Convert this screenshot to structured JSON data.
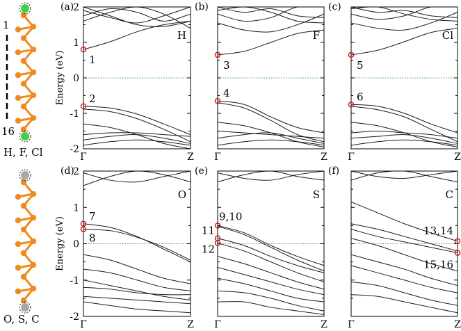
{
  "chart_data": [
    {
      "type": "line",
      "panel_label": "(a)",
      "element": "H",
      "ylabel": "Energy (eV)",
      "ylim": [
        -2,
        2
      ],
      "yticks": [
        "-2",
        "-1",
        "0",
        "1",
        "2"
      ],
      "xticks": [
        "Γ",
        "Z"
      ],
      "fermi_level": 0,
      "markers": [
        {
          "label": "1",
          "k": 0,
          "energy": 0.8
        },
        {
          "label": "2",
          "k": 0,
          "energy": -0.8
        }
      ],
      "bands": [
        {
          "x": [
            0,
            0.25,
            0.5,
            0.75,
            1
          ],
          "y": [
            0.8,
            1.02,
            1.3,
            1.5,
            1.6
          ]
        },
        {
          "x": [
            0,
            0.25,
            0.5,
            0.75,
            1
          ],
          "y": [
            -0.8,
            -0.85,
            -1.02,
            -1.3,
            -1.6
          ]
        },
        {
          "x": [
            0,
            0.25,
            0.5,
            0.75,
            1
          ],
          "y": [
            -0.88,
            -0.95,
            -1.15,
            -1.45,
            -1.8
          ]
        },
        {
          "x": [
            0,
            0.25,
            0.5,
            0.75,
            1
          ],
          "y": [
            -1.3,
            -1.4,
            -1.6,
            -1.85,
            -2.0
          ]
        },
        {
          "x": [
            0,
            0.25,
            0.5,
            0.75,
            1
          ],
          "y": [
            -1.6,
            -1.55,
            -1.55,
            -1.6,
            -1.65
          ]
        },
        {
          "x": [
            0,
            0.25,
            0.5,
            0.75,
            1
          ],
          "y": [
            -1.75,
            -1.65,
            -1.6,
            -1.7,
            -1.85
          ]
        },
        {
          "x": [
            0,
            0.25,
            0.5,
            0.75,
            1
          ],
          "y": [
            -1.9,
            -1.8,
            -1.75,
            -1.8,
            -1.9
          ]
        },
        {
          "x": [
            0,
            0.25,
            0.5,
            0.75,
            1
          ],
          "y": [
            1.9,
            1.7,
            1.55,
            1.75,
            2.0
          ]
        },
        {
          "x": [
            0,
            0.25,
            0.5,
            0.75,
            1
          ],
          "y": [
            1.6,
            1.85,
            2.0,
            1.8,
            1.4
          ]
        },
        {
          "x": [
            0,
            0.25,
            0.5,
            0.75,
            1
          ],
          "y": [
            2.0,
            1.75,
            1.5,
            1.45,
            1.6
          ]
        },
        {
          "x": [
            0,
            0.25,
            0.5,
            0.75,
            1
          ],
          "y": [
            1.75,
            1.95,
            1.85,
            1.6,
            1.8
          ]
        }
      ]
    },
    {
      "type": "line",
      "panel_label": "(b)",
      "element": "F",
      "ylim": [
        -2,
        2
      ],
      "xticks": [
        "Γ",
        "Z"
      ],
      "fermi_level": 0,
      "markers": [
        {
          "label": "3",
          "k": 0,
          "energy": 0.65
        },
        {
          "label": "4",
          "k": 0,
          "energy": -0.65
        }
      ],
      "bands": [
        {
          "x": [
            0,
            0.25,
            0.5,
            0.75,
            1
          ],
          "y": [
            0.65,
            0.75,
            1.0,
            1.25,
            1.35
          ]
        },
        {
          "x": [
            0,
            0.25,
            0.5,
            0.75,
            1
          ],
          "y": [
            -0.65,
            -0.75,
            -1.1,
            -1.4,
            -1.55
          ]
        },
        {
          "x": [
            0,
            0.25,
            0.5,
            0.75,
            1
          ],
          "y": [
            -0.7,
            -0.85,
            -1.2,
            -1.6,
            -1.8
          ]
        },
        {
          "x": [
            0,
            0.25,
            0.5,
            0.75,
            1
          ],
          "y": [
            -1.25,
            -1.35,
            -1.55,
            -1.8,
            -1.95
          ]
        },
        {
          "x": [
            0,
            0.25,
            0.5,
            0.75,
            1
          ],
          "y": [
            -1.5,
            -1.55,
            -1.6,
            -1.65,
            -1.7
          ]
        },
        {
          "x": [
            0,
            0.25,
            0.5,
            0.75,
            1
          ],
          "y": [
            -1.7,
            -1.6,
            -1.55,
            -1.7,
            -1.85
          ]
        },
        {
          "x": [
            0,
            0.25,
            0.5,
            0.75,
            1
          ],
          "y": [
            -1.9,
            -1.8,
            -1.75,
            -1.8,
            -1.9
          ]
        },
        {
          "x": [
            0,
            0.25,
            0.5,
            0.75,
            1
          ],
          "y": [
            1.55,
            1.35,
            1.3,
            1.5,
            1.8
          ]
        },
        {
          "x": [
            0,
            0.25,
            0.5,
            0.75,
            1
          ],
          "y": [
            1.8,
            1.6,
            1.7,
            2.0,
            2.0
          ]
        },
        {
          "x": [
            0,
            0.25,
            0.5,
            0.75,
            1
          ],
          "y": [
            1.9,
            2.0,
            1.85,
            1.6,
            1.55
          ]
        },
        {
          "x": [
            0,
            0.25,
            0.5,
            0.75,
            1
          ],
          "y": [
            2.0,
            1.85,
            1.95,
            1.75,
            1.7
          ]
        }
      ]
    },
    {
      "type": "line",
      "panel_label": "(c)",
      "element": "Cl",
      "ylim": [
        -2,
        2
      ],
      "xticks": [
        "Γ",
        "Z"
      ],
      "fermi_level": 0,
      "markers": [
        {
          "label": "5",
          "k": 0,
          "energy": 0.65
        },
        {
          "label": "6",
          "k": 0,
          "energy": -0.75
        }
      ],
      "bands": [
        {
          "x": [
            0,
            0.25,
            0.5,
            0.75,
            1
          ],
          "y": [
            0.65,
            0.78,
            1.02,
            1.28,
            1.4
          ]
        },
        {
          "x": [
            0,
            0.25,
            0.5,
            0.75,
            1
          ],
          "y": [
            -0.75,
            -0.8,
            -1.0,
            -1.3,
            -1.55
          ]
        },
        {
          "x": [
            0,
            0.25,
            0.5,
            0.75,
            1
          ],
          "y": [
            -0.8,
            -0.9,
            -1.1,
            -1.45,
            -1.8
          ]
        },
        {
          "x": [
            0,
            0.25,
            0.5,
            0.75,
            1
          ],
          "y": [
            -1.25,
            -1.35,
            -1.55,
            -1.8,
            -1.95
          ]
        },
        {
          "x": [
            0,
            0.25,
            0.5,
            0.75,
            1
          ],
          "y": [
            -1.55,
            -1.5,
            -1.55,
            -1.6,
            -1.7
          ]
        },
        {
          "x": [
            0,
            0.25,
            0.5,
            0.75,
            1
          ],
          "y": [
            -1.7,
            -1.65,
            -1.6,
            -1.7,
            -1.85
          ]
        },
        {
          "x": [
            0,
            0.25,
            0.5,
            0.75,
            1
          ],
          "y": [
            -1.9,
            -1.8,
            -1.75,
            -1.8,
            -1.9
          ]
        },
        {
          "x": [
            0,
            0.25,
            0.5,
            0.75,
            1
          ],
          "y": [
            1.55,
            1.4,
            1.35,
            1.55,
            1.85
          ]
        },
        {
          "x": [
            0,
            0.25,
            0.5,
            0.75,
            1
          ],
          "y": [
            1.8,
            1.65,
            1.75,
            2.0,
            2.0
          ]
        },
        {
          "x": [
            0,
            0.25,
            0.5,
            0.75,
            1
          ],
          "y": [
            1.95,
            2.0,
            1.8,
            1.65,
            1.6
          ]
        },
        {
          "x": [
            0,
            0.25,
            0.5,
            0.75,
            1
          ],
          "y": [
            2.0,
            1.85,
            1.9,
            1.75,
            1.7
          ]
        }
      ]
    },
    {
      "type": "line",
      "panel_label": "(d)",
      "element": "O",
      "ylabel": "Energy (eV)",
      "ylim": [
        -2,
        2
      ],
      "yticks": [
        "-2",
        "-1",
        "0",
        "1",
        "2"
      ],
      "xticks": [
        "Γ",
        "Z"
      ],
      "fermi_level": 0,
      "markers": [
        {
          "label": "7",
          "k": 0,
          "energy": 0.55
        },
        {
          "label": "8",
          "k": 0,
          "energy": 0.4
        }
      ],
      "bands": [
        {
          "x": [
            0,
            0.25,
            0.5,
            0.75,
            1
          ],
          "y": [
            0.55,
            0.45,
            0.2,
            -0.15,
            -0.5
          ]
        },
        {
          "x": [
            0,
            0.25,
            0.5,
            0.75,
            1
          ],
          "y": [
            0.4,
            0.36,
            0.18,
            -0.1,
            -0.45
          ]
        },
        {
          "x": [
            0,
            0.25,
            0.5,
            0.75,
            1
          ],
          "y": [
            -0.3,
            -0.45,
            -0.7,
            -0.95,
            -1.1
          ]
        },
        {
          "x": [
            0,
            0.25,
            0.5,
            0.75,
            1
          ],
          "y": [
            -0.7,
            -0.8,
            -1.0,
            -1.2,
            -1.3
          ]
        },
        {
          "x": [
            0,
            0.25,
            0.5,
            0.75,
            1
          ],
          "y": [
            -1.0,
            -1.15,
            -1.3,
            -1.45,
            -1.55
          ]
        },
        {
          "x": [
            0,
            0.25,
            0.5,
            0.75,
            1
          ],
          "y": [
            -1.2,
            -1.25,
            -1.35,
            -1.4,
            -1.4
          ]
        },
        {
          "x": [
            0,
            0.25,
            0.5,
            0.75,
            1
          ],
          "y": [
            -1.45,
            -1.5,
            -1.55,
            -1.6,
            -1.65
          ]
        },
        {
          "x": [
            0,
            0.25,
            0.5,
            0.75,
            1
          ],
          "y": [
            -1.6,
            -1.7,
            -1.8,
            -1.85,
            -1.9
          ]
        },
        {
          "x": [
            0,
            0.25,
            0.5,
            0.75,
            1
          ],
          "y": [
            1.6,
            1.85,
            2.0,
            1.9,
            1.7
          ]
        },
        {
          "x": [
            0,
            0.25,
            0.5,
            0.75,
            1
          ],
          "y": [
            1.95,
            1.75,
            1.7,
            1.85,
            2.0
          ]
        }
      ]
    },
    {
      "type": "line",
      "panel_label": "(e)",
      "element": "S",
      "ylim": [
        -2,
        2
      ],
      "xticks": [
        "Γ",
        "Z"
      ],
      "fermi_level": 0,
      "markers": [
        {
          "label": "9,10",
          "k": 0,
          "energy": 0.5
        },
        {
          "label": "11",
          "k": 0,
          "energy": 0.15
        },
        {
          "label": "12",
          "k": 0,
          "energy": 0.02
        }
      ],
      "bands": [
        {
          "x": [
            0,
            0.25,
            0.5,
            0.75,
            1
          ],
          "y": [
            0.5,
            0.3,
            -0.05,
            -0.35,
            -0.6
          ]
        },
        {
          "x": [
            0,
            0.25,
            0.5,
            0.75,
            1
          ],
          "y": [
            0.48,
            0.25,
            -0.1,
            -0.45,
            -0.75
          ]
        },
        {
          "x": [
            0,
            0.25,
            0.5,
            0.75,
            1
          ],
          "y": [
            0.15,
            -0.05,
            -0.35,
            -0.6,
            -0.8
          ]
        },
        {
          "x": [
            0,
            0.25,
            0.5,
            0.75,
            1
          ],
          "y": [
            0.02,
            -0.2,
            -0.5,
            -0.8,
            -1.05
          ]
        },
        {
          "x": [
            0,
            0.25,
            0.5,
            0.75,
            1
          ],
          "y": [
            -0.35,
            -0.55,
            -0.8,
            -1.05,
            -1.25
          ]
        },
        {
          "x": [
            0,
            0.25,
            0.5,
            0.75,
            1
          ],
          "y": [
            -0.65,
            -0.85,
            -1.05,
            -1.25,
            -1.4
          ]
        },
        {
          "x": [
            0,
            0.25,
            0.5,
            0.75,
            1
          ],
          "y": [
            -0.95,
            -1.1,
            -1.3,
            -1.5,
            -1.6
          ]
        },
        {
          "x": [
            0,
            0.25,
            0.5,
            0.75,
            1
          ],
          "y": [
            -1.3,
            -1.35,
            -1.5,
            -1.7,
            -1.85
          ]
        },
        {
          "x": [
            0,
            0.25,
            0.5,
            0.75,
            1
          ],
          "y": [
            -1.6,
            -1.6,
            -1.75,
            -1.85,
            -1.95
          ]
        },
        {
          "x": [
            0,
            0.25,
            0.5,
            0.75,
            1
          ],
          "y": [
            1.7,
            1.9,
            2.0,
            1.85,
            1.75
          ]
        },
        {
          "x": [
            0,
            0.25,
            0.5,
            0.75,
            1
          ],
          "y": [
            1.95,
            1.8,
            1.75,
            1.9,
            2.0
          ]
        }
      ]
    },
    {
      "type": "line",
      "panel_label": "(f)",
      "element": "C",
      "ylim": [
        -2,
        2
      ],
      "xticks": [
        "Γ",
        "Z"
      ],
      "fermi_level": 0,
      "markers": [
        {
          "label": "13,14",
          "k": 1,
          "energy": 0.07
        },
        {
          "label": "15,16",
          "k": 1,
          "energy": -0.25
        }
      ],
      "bands": [
        {
          "x": [
            0,
            0.25,
            0.5,
            0.75,
            1
          ],
          "y": [
            1.15,
            0.85,
            0.55,
            0.3,
            0.07
          ]
        },
        {
          "x": [
            0,
            0.25,
            0.5,
            0.75,
            1
          ],
          "y": [
            0.55,
            0.4,
            0.2,
            0.0,
            -0.2
          ]
        },
        {
          "x": [
            0,
            0.25,
            0.5,
            0.75,
            1
          ],
          "y": [
            0.4,
            0.2,
            0.05,
            -0.1,
            -0.25
          ]
        },
        {
          "x": [
            0,
            0.25,
            0.5,
            0.75,
            1
          ],
          "y": [
            0.15,
            -0.05,
            -0.3,
            -0.55,
            -0.75
          ]
        },
        {
          "x": [
            0,
            0.25,
            0.5,
            0.75,
            1
          ],
          "y": [
            -0.3,
            -0.5,
            -0.7,
            -0.95,
            -1.15
          ]
        },
        {
          "x": [
            0,
            0.25,
            0.5,
            0.75,
            1
          ],
          "y": [
            -0.6,
            -0.8,
            -1.0,
            -1.2,
            -1.35
          ]
        },
        {
          "x": [
            0,
            0.25,
            0.5,
            0.75,
            1
          ],
          "y": [
            -1.05,
            -1.15,
            -1.35,
            -1.55,
            -1.7
          ]
        },
        {
          "x": [
            0,
            0.25,
            0.5,
            0.75,
            1
          ],
          "y": [
            -1.4,
            -1.45,
            -1.6,
            -1.75,
            -1.9
          ]
        },
        {
          "x": [
            0,
            0.25,
            0.5,
            0.75,
            1
          ],
          "y": [
            1.75,
            1.95,
            2.0,
            1.85,
            1.7
          ]
        },
        {
          "x": [
            0,
            0.25,
            0.5,
            0.75,
            1
          ],
          "y": [
            2.0,
            1.85,
            1.8,
            1.9,
            2.0
          ]
        }
      ]
    }
  ],
  "structures": [
    {
      "terminal_labels": "H, F, Cl",
      "top_index": "1",
      "bottom_index": "16",
      "terminal_color": "#44d044"
    },
    {
      "terminal_labels": "O, S, C",
      "terminal_color": "#a8a8a8"
    }
  ],
  "colors": {
    "band": "#1a1a1a",
    "fermi": "#33aa33",
    "marker": "#cc1a1a",
    "atom": "#f08a1c",
    "bond": "#f08a1c"
  }
}
